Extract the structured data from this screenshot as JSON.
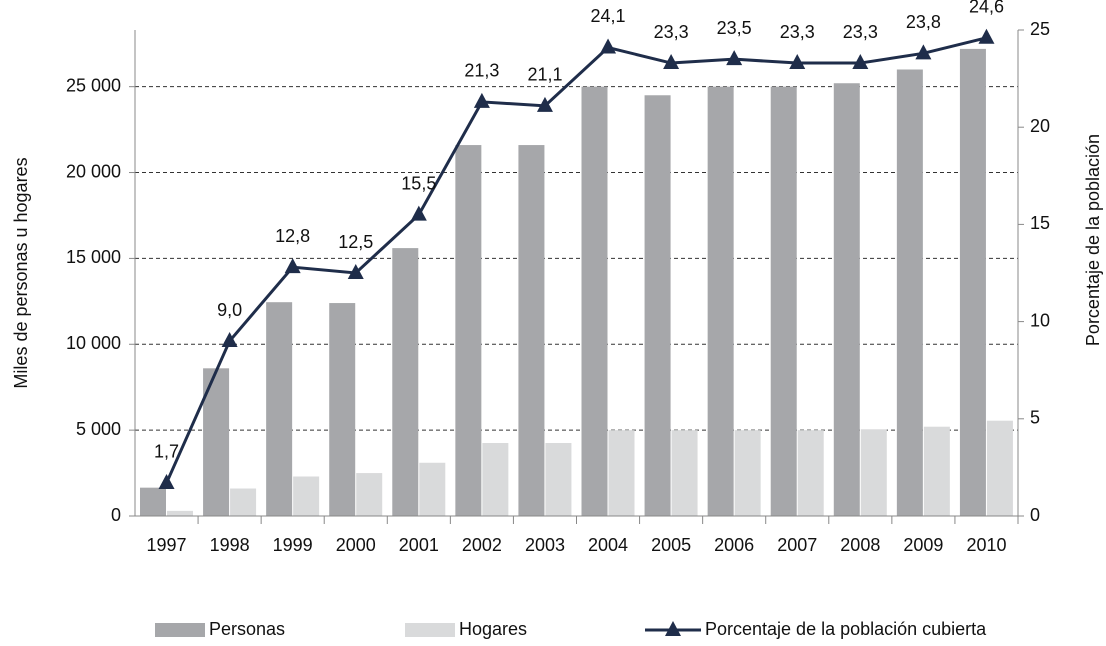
{
  "chart_data": {
    "type": "bar_line",
    "y_label": "Miles de personas u hogares",
    "y2_label": "Porcentaje  de la población",
    "categories": [
      "1997",
      "1998",
      "1999",
      "2000",
      "2001",
      "2002",
      "2003",
      "2004",
      "2005",
      "2006",
      "2007",
      "2008",
      "2009",
      "2010"
    ],
    "series": [
      {
        "name": "Personas",
        "type": "bar",
        "color": "#a6a7aa",
        "values": [
          1650,
          8600,
          12450,
          12400,
          15600,
          21600,
          21600,
          25000,
          24500,
          25000,
          25000,
          25200,
          26000,
          27200
        ]
      },
      {
        "name": "Hogares",
        "type": "bar",
        "color": "#d9dadb",
        "values": [
          300,
          1600,
          2300,
          2500,
          3100,
          4250,
          4250,
          5000,
          5000,
          5000,
          5000,
          5050,
          5200,
          5550
        ]
      },
      {
        "name": "Porcentaje de la población cubierta",
        "type": "line",
        "axis": "y2",
        "color": "#1f2d4a",
        "values": [
          1.7,
          9.0,
          12.8,
          12.5,
          15.5,
          21.3,
          21.1,
          24.1,
          23.3,
          23.5,
          23.3,
          23.3,
          23.8,
          24.6
        ],
        "value_labels": [
          "1,7",
          "9,0",
          "12,8",
          "12,5",
          "15,5",
          "21,3",
          "21,1",
          "24,1",
          "23,3",
          "23,5",
          "23,3",
          "23,3",
          "23,8",
          "24,6"
        ]
      }
    ],
    "ylim": [
      0,
      28300
    ],
    "yticks": [
      0,
      {
        "value": 5000,
        "label": "5 000"
      },
      {
        "value": 10000,
        "label": "10 000"
      },
      {
        "value": 15000,
        "label": "15 000"
      },
      {
        "value": 20000,
        "label": "20 000"
      },
      {
        "value": 25000,
        "label": "25 000"
      }
    ],
    "y2lim": [
      0,
      25
    ],
    "y2ticks": [
      0,
      5,
      10,
      15,
      20,
      25
    ],
    "grid": true
  }
}
